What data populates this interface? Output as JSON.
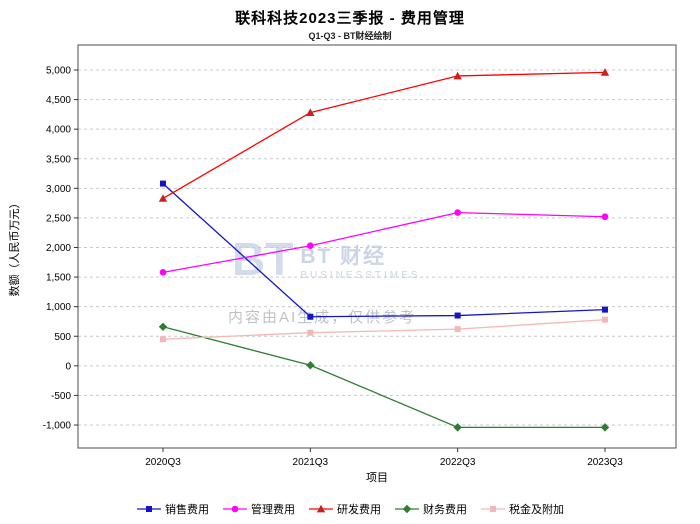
{
  "header": {
    "title": "联科科技2023三季报 - 费用管理",
    "subtitle": "Q1-Q3 - BT财经绘制"
  },
  "watermark": {
    "logo_letters": "BT",
    "brand": "BT 财经",
    "brand_sub": "BUSINESSTIMES",
    "disclaimer": "内容由AI生成，仅供参考"
  },
  "chart_data": {
    "type": "line",
    "title": "联科科技2023三季报 - 费用管理",
    "subtitle": "Q1-Q3 - BT财经绘制",
    "categories": [
      "2020Q3",
      "2021Q3",
      "2022Q3",
      "2023Q3"
    ],
    "series": [
      {
        "id": "sales-expense",
        "name": "销售费用",
        "color": "#1414cc",
        "marker": "square",
        "values": [
          3080,
          830,
          850,
          950
        ]
      },
      {
        "id": "admin-expense",
        "name": "管理费用",
        "color": "#ff00ff",
        "marker": "circle",
        "values": [
          1580,
          2030,
          2590,
          2520
        ]
      },
      {
        "id": "rnd-expense",
        "name": "研发费用",
        "color": "#ff0000",
        "marker": "triangle",
        "marker_color": "#cc2020",
        "values": [
          2830,
          4280,
          4900,
          4960
        ]
      },
      {
        "id": "finance-expense",
        "name": "财务费用",
        "color": "#2e7d32",
        "marker": "diamond",
        "values": [
          660,
          10,
          -1040,
          -1040
        ]
      },
      {
        "id": "tax-surcharge",
        "name": "税金及附加",
        "color": "#f2b8b5",
        "marker": "square",
        "values": [
          450,
          560,
          620,
          780
        ]
      }
    ],
    "xlabel": "项目",
    "ylabel": "数额（人民币万元）",
    "ylim": [
      -1000,
      5000
    ],
    "ytick_step": 500,
    "grid": true,
    "grid_style": "dashed",
    "legend_position": "bottom"
  }
}
